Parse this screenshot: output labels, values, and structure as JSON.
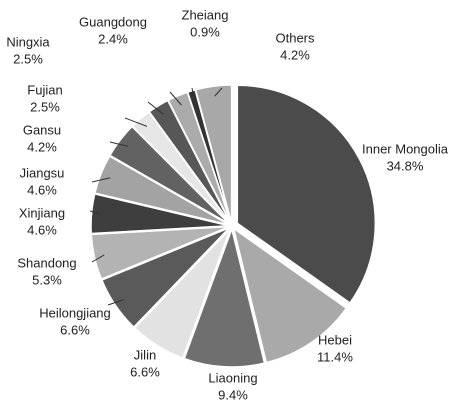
{
  "chart_data": {
    "type": "pie",
    "categories": [
      "Inner Mongolia",
      "Hebei",
      "Liaoning",
      "Jilin",
      "Heilongjiang",
      "Shandong",
      "Xinjiang",
      "Jiangsu",
      "Gansu",
      "Fujian",
      "Ningxia",
      "Guangdong",
      "Zheiang",
      "Others"
    ],
    "values": [
      34.8,
      11.4,
      9.4,
      6.6,
      6.6,
      5.3,
      4.6,
      4.6,
      4.2,
      2.5,
      2.5,
      2.4,
      0.9,
      4.2
    ],
    "value_labels": [
      "34.8%",
      "11.4%",
      "9.4%",
      "6.6%",
      "6.6%",
      "5.3%",
      "4.6%",
      "4.6%",
      "4.2%",
      "2.5%",
      "2.5%",
      "2.4%",
      "0.9%",
      "4.2%"
    ],
    "colors": [
      "#4b4b4b",
      "#a9a9a9",
      "#6f6f6f",
      "#e2e2e2",
      "#5a5a5a",
      "#b3b3b3",
      "#3e3e3e",
      "#a3a3a3",
      "#626262",
      "#e6e6e6",
      "#575757",
      "#ababab",
      "#333333",
      "#a8a8a8"
    ]
  }
}
